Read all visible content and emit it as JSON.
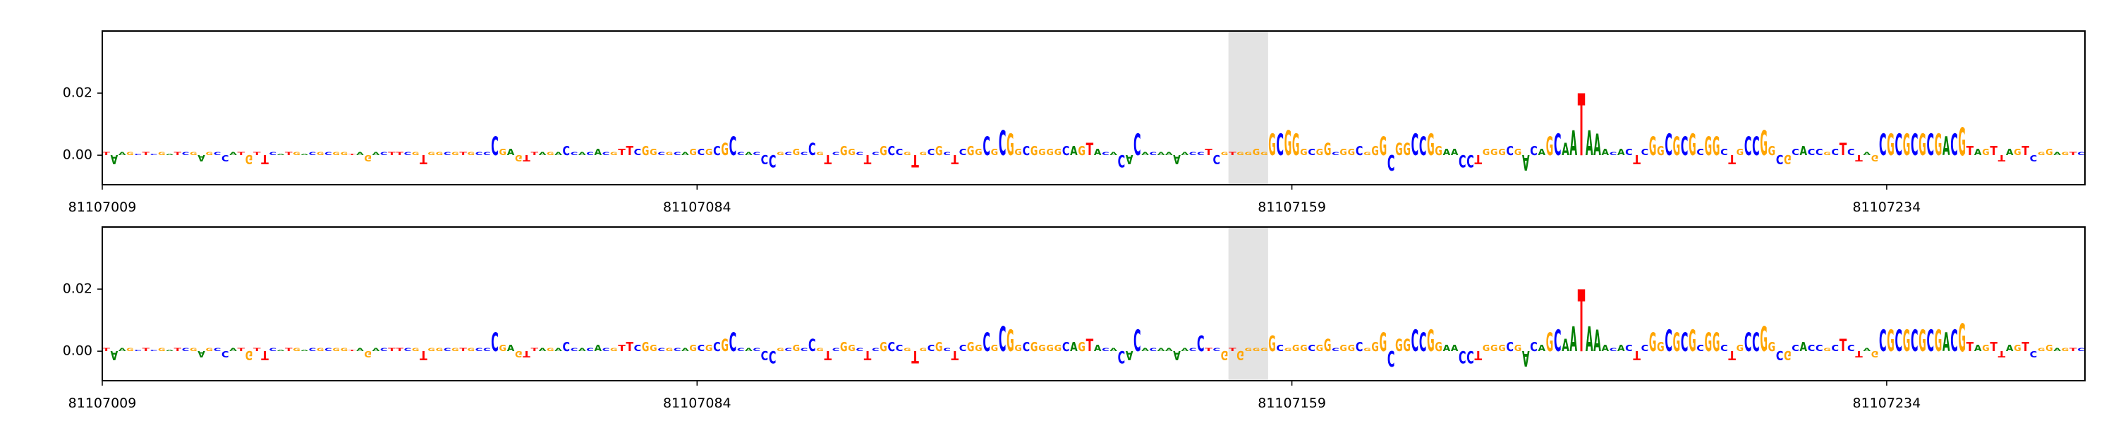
{
  "chart_data": [
    {
      "type": "logo",
      "xlim": [
        81107009,
        81107259
      ],
      "xticks": [
        81107009,
        81107084,
        81107159,
        81107234
      ],
      "ylim": [
        -0.0095,
        0.04
      ],
      "yticks": [
        {
          "value": 0,
          "label": "0.00"
        },
        {
          "value": 0.02,
          "label": "0.02"
        }
      ],
      "highlight": [
        81107151,
        81107156
      ],
      "colors": {
        "A": "#008000",
        "C": "#0000ff",
        "G": "#ffa500",
        "T": "#ff0000"
      },
      "bases": [
        "T",
        "A",
        "A",
        "G",
        "C",
        "T",
        "C",
        "G",
        "A",
        "T",
        "C",
        "G",
        "A",
        "G",
        "C",
        "C",
        "A",
        "T",
        "G",
        "T",
        "T",
        "C",
        "A",
        "T",
        "G",
        "A",
        "C",
        "G",
        "C",
        "G",
        "G",
        "T",
        "A",
        "G",
        "A",
        "C",
        "T",
        "T",
        "C",
        "G",
        "T",
        "G",
        "G",
        "C",
        "G",
        "T",
        "G",
        "C",
        "C",
        "C",
        "G",
        "A",
        "G",
        "T",
        "T",
        "A",
        "G",
        "A",
        "C",
        "C",
        "A",
        "C",
        "A",
        "C",
        "G",
        "T",
        "T",
        "C",
        "G",
        "G",
        "C",
        "G",
        "C",
        "A",
        "G",
        "C",
        "G",
        "C",
        "G",
        "C",
        "C",
        "A",
        "C",
        "C",
        "C",
        "G",
        "C",
        "G",
        "C",
        "C",
        "G",
        "T",
        "C",
        "G",
        "G",
        "C",
        "T",
        "C",
        "G",
        "C",
        "C",
        "G",
        "T",
        "G",
        "C",
        "G",
        "C",
        "T",
        "C",
        "G",
        "G",
        "C",
        "G",
        "C",
        "G",
        "G",
        "C",
        "G",
        "G",
        "G",
        "G",
        "C",
        "A",
        "G",
        "T",
        "A",
        "C",
        "A",
        "C",
        "A",
        "C",
        "A",
        "C",
        "A",
        "A",
        "A",
        "A",
        "C",
        "C",
        "T",
        "C",
        "G",
        "T",
        "G",
        "G",
        "G",
        "G",
        "G",
        "C",
        "G",
        "G",
        "G",
        "C",
        "G",
        "G",
        "C",
        "G",
        "G",
        "C",
        "G",
        "G",
        "G",
        "C",
        "G",
        "G",
        "C",
        "C",
        "G",
        "G",
        "A",
        "A",
        "C",
        "C",
        "T",
        "G",
        "G",
        "G",
        "C",
        "G",
        "A",
        "C",
        "A",
        "G",
        "C",
        "A",
        "A",
        "T",
        "A",
        "A",
        "A",
        "C",
        "A",
        "C",
        "T",
        "C",
        "G",
        "G",
        "C",
        "G",
        "C",
        "G",
        "C",
        "G",
        "G",
        "C",
        "T",
        "G",
        "C",
        "C",
        "G",
        "G",
        "C",
        "G",
        "C",
        "A",
        "C",
        "C",
        "G",
        "C",
        "T",
        "C",
        "T",
        "A",
        "G",
        "C",
        "G",
        "C",
        "G",
        "C",
        "G",
        "C",
        "G",
        "A",
        "C",
        "G",
        "T",
        "A",
        "G",
        "T",
        "T",
        "A",
        "G",
        "T",
        "C",
        "G",
        "G",
        "A",
        "G",
        "T",
        "C"
      ],
      "values": [
        0.001,
        -0.003,
        0.001,
        0.001,
        0.0005,
        0.001,
        0.0005,
        0.001,
        0.0005,
        0.001,
        0.001,
        0.001,
        -0.002,
        0.001,
        0.001,
        -0.002,
        0.001,
        0.001,
        -0.003,
        0.001,
        -0.003,
        0.001,
        0.0005,
        0.001,
        0.001,
        0.0005,
        0.001,
        0.001,
        0.001,
        0.001,
        0.001,
        0.0005,
        0.001,
        -0.002,
        0.001,
        0.001,
        0.001,
        0.001,
        0.001,
        0.001,
        -0.003,
        0.001,
        0.001,
        0.001,
        0.001,
        0.001,
        0.001,
        0.001,
        0.001,
        0.006,
        0.002,
        0.002,
        -0.002,
        -0.002,
        0.001,
        0.001,
        0.001,
        0.001,
        0.003,
        0.001,
        0.001,
        0.001,
        0.002,
        0.001,
        0.001,
        0.002,
        0.003,
        0.002,
        0.003,
        0.002,
        0.001,
        0.001,
        0.001,
        0.001,
        0.002,
        0.002,
        0.002,
        0.003,
        0.004,
        0.006,
        0.001,
        0.001,
        0.001,
        -0.003,
        -0.004,
        0.001,
        0.001,
        0.002,
        0.001,
        0.004,
        0.001,
        -0.003,
        0.001,
        0.003,
        0.002,
        0.001,
        -0.003,
        0.001,
        0.003,
        0.003,
        0.002,
        0.001,
        -0.004,
        0.001,
        0.002,
        0.003,
        0.001,
        -0.003,
        0.002,
        0.003,
        0.002,
        0.006,
        0.002,
        0.008,
        0.007,
        0.002,
        0.003,
        0.003,
        0.002,
        0.002,
        0.002,
        0.003,
        0.003,
        0.003,
        0.004,
        0.002,
        0.001,
        0.001,
        -0.004,
        -0.003,
        0.007,
        0.001,
        0.001,
        0.001,
        0.001,
        -0.003,
        0.001,
        0.001,
        0.001,
        0.002,
        -0.003,
        0.001,
        0.001,
        0.001,
        0.001,
        0.002,
        0.001,
        0.007,
        0.007,
        0.008,
        0.007,
        0.002,
        0.002,
        0.002,
        0.004,
        0.001,
        0.002,
        0.002,
        0.003,
        0.001,
        0.003,
        0.006,
        -0.005,
        0.004,
        0.004,
        0.007,
        0.006,
        0.007,
        0.003,
        0.002,
        0.002,
        -0.004,
        -0.004,
        -0.003,
        0.002,
        0.002,
        0.002,
        0.003,
        0.002,
        -0.005,
        0.003,
        0.002,
        0.006,
        0.007,
        0.004,
        0.008,
        0.02,
        0.008,
        0.007,
        0.002,
        0.001,
        0.002,
        0.002,
        -0.003,
        0.002,
        0.006,
        0.003,
        0.007,
        0.006,
        0.006,
        0.007,
        0.002,
        0.006,
        0.006,
        0.002,
        -0.003,
        0.002,
        0.006,
        0.006,
        0.008,
        0.003,
        -0.003,
        -0.003,
        0.002,
        0.003,
        0.002,
        0.002,
        0.001,
        0.002,
        0.004,
        0.002,
        -0.002,
        0.001,
        -0.002,
        0.007,
        0.007,
        0.007,
        0.007,
        0.007,
        0.007,
        0.007,
        0.007,
        0.006,
        0.007,
        0.009,
        0.003,
        0.002,
        0.002,
        0.003,
        -0.002,
        0.002,
        0.002,
        0.003,
        -0.002,
        0.001,
        0.002,
        0.001,
        0.001,
        0.001,
        0.001
      ]
    },
    {
      "type": "logo",
      "xlim": [
        81107009,
        81107259
      ],
      "xticks": [
        81107009,
        81107084,
        81107159,
        81107234
      ],
      "ylim": [
        -0.0095,
        0.04
      ],
      "yticks": [
        {
          "value": 0,
          "label": "0.00"
        },
        {
          "value": 0.02,
          "label": "0.02"
        }
      ],
      "highlight": [
        81107151,
        81107156
      ],
      "colors": {
        "A": "#008000",
        "C": "#0000ff",
        "G": "#ffa500",
        "T": "#ff0000"
      },
      "bases": [
        "T",
        "A",
        "A",
        "G",
        "C",
        "T",
        "C",
        "G",
        "A",
        "T",
        "C",
        "G",
        "A",
        "G",
        "C",
        "C",
        "A",
        "T",
        "G",
        "T",
        "T",
        "C",
        "A",
        "T",
        "G",
        "A",
        "C",
        "G",
        "C",
        "G",
        "G",
        "T",
        "A",
        "G",
        "A",
        "C",
        "T",
        "T",
        "C",
        "G",
        "T",
        "G",
        "G",
        "C",
        "G",
        "T",
        "G",
        "C",
        "C",
        "C",
        "G",
        "A",
        "G",
        "T",
        "T",
        "A",
        "G",
        "A",
        "C",
        "C",
        "A",
        "C",
        "A",
        "C",
        "G",
        "T",
        "T",
        "C",
        "G",
        "G",
        "C",
        "G",
        "C",
        "A",
        "G",
        "C",
        "G",
        "C",
        "G",
        "C",
        "C",
        "A",
        "C",
        "C",
        "C",
        "G",
        "C",
        "G",
        "C",
        "C",
        "G",
        "T",
        "C",
        "G",
        "G",
        "C",
        "T",
        "C",
        "G",
        "C",
        "C",
        "G",
        "T",
        "G",
        "C",
        "G",
        "C",
        "T",
        "C",
        "G",
        "G",
        "C",
        "G",
        "C",
        "G",
        "G",
        "C",
        "G",
        "G",
        "G",
        "G",
        "C",
        "A",
        "G",
        "T",
        "A",
        "C",
        "A",
        "C",
        "A",
        "C",
        "A",
        "C",
        "A",
        "A",
        "A",
        "A",
        "C",
        "C",
        "T",
        "C",
        "G",
        "T",
        "G",
        "G",
        "G",
        "G",
        "G",
        "C",
        "G",
        "G",
        "G",
        "C",
        "G",
        "G",
        "C",
        "G",
        "G",
        "C",
        "G",
        "G",
        "G",
        "C",
        "G",
        "G",
        "C",
        "C",
        "G",
        "G",
        "A",
        "A",
        "C",
        "C",
        "T",
        "G",
        "G",
        "G",
        "C",
        "G",
        "A",
        "C",
        "A",
        "G",
        "C",
        "A",
        "A",
        "T",
        "A",
        "A",
        "A",
        "C",
        "A",
        "C",
        "T",
        "C",
        "G",
        "G",
        "C",
        "G",
        "C",
        "G",
        "C",
        "G",
        "G",
        "C",
        "T",
        "G",
        "C",
        "C",
        "G",
        "G",
        "C",
        "G",
        "C",
        "A",
        "C",
        "C",
        "G",
        "C",
        "T",
        "C",
        "T",
        "A",
        "G",
        "C",
        "G",
        "C",
        "G",
        "C",
        "G",
        "C",
        "G",
        "A",
        "C",
        "G",
        "T",
        "A",
        "G",
        "T",
        "T",
        "A",
        "G",
        "T",
        "C",
        "G",
        "G",
        "A",
        "G",
        "T",
        "C"
      ],
      "values": [
        0.001,
        -0.003,
        0.001,
        0.001,
        0.0005,
        0.001,
        0.0005,
        0.001,
        0.0005,
        0.001,
        0.001,
        0.001,
        -0.002,
        0.001,
        0.001,
        -0.002,
        0.001,
        0.001,
        -0.003,
        0.001,
        -0.003,
        0.001,
        0.0005,
        0.001,
        0.001,
        0.0005,
        0.001,
        0.001,
        0.001,
        0.001,
        0.001,
        0.0005,
        0.001,
        -0.002,
        0.001,
        0.001,
        0.001,
        0.001,
        0.001,
        0.001,
        -0.003,
        0.001,
        0.001,
        0.001,
        0.001,
        0.001,
        0.001,
        0.001,
        0.001,
        0.006,
        0.002,
        0.002,
        -0.002,
        -0.002,
        0.001,
        0.001,
        0.001,
        0.001,
        0.003,
        0.001,
        0.001,
        0.001,
        0.002,
        0.001,
        0.001,
        0.002,
        0.003,
        0.002,
        0.003,
        0.002,
        0.001,
        0.001,
        0.001,
        0.001,
        0.002,
        0.002,
        0.002,
        0.003,
        0.004,
        0.006,
        0.001,
        0.001,
        0.001,
        -0.003,
        -0.004,
        0.001,
        0.001,
        0.002,
        0.001,
        0.004,
        0.001,
        -0.003,
        0.001,
        0.003,
        0.002,
        0.001,
        -0.003,
        0.001,
        0.003,
        0.003,
        0.002,
        0.001,
        -0.004,
        0.001,
        0.002,
        0.003,
        0.001,
        -0.003,
        0.002,
        0.003,
        0.002,
        0.006,
        0.002,
        0.008,
        0.007,
        0.002,
        0.003,
        0.003,
        0.002,
        0.002,
        0.002,
        0.003,
        0.003,
        0.003,
        0.004,
        0.002,
        0.001,
        0.001,
        -0.004,
        -0.003,
        0.007,
        0.001,
        0.001,
        0.001,
        0.001,
        -0.003,
        0.001,
        0.001,
        0.005,
        0.001,
        0.001,
        -0.003,
        0.001,
        -0.003,
        0.001,
        0.001,
        0.001,
        0.005,
        0.002,
        0.001,
        0.002,
        0.002,
        0.002,
        0.002,
        0.004,
        0.001,
        0.002,
        0.002,
        0.003,
        0.001,
        0.003,
        0.006,
        -0.005,
        0.004,
        0.004,
        0.007,
        0.006,
        0.007,
        0.003,
        0.002,
        0.002,
        -0.004,
        -0.004,
        -0.003,
        0.002,
        0.002,
        0.002,
        0.003,
        0.002,
        -0.005,
        0.003,
        0.002,
        0.006,
        0.007,
        0.004,
        0.008,
        0.02,
        0.008,
        0.007,
        0.002,
        0.001,
        0.002,
        0.002,
        -0.003,
        0.002,
        0.006,
        0.003,
        0.007,
        0.006,
        0.006,
        0.007,
        0.002,
        0.006,
        0.006,
        0.002,
        -0.003,
        0.002,
        0.006,
        0.006,
        0.008,
        0.003,
        -0.003,
        -0.003,
        0.002,
        0.003,
        0.002,
        0.002,
        0.001,
        0.002,
        0.004,
        0.002,
        -0.002,
        0.001,
        -0.002,
        0.007,
        0.007,
        0.007,
        0.007,
        0.007,
        0.007,
        0.007,
        0.007,
        0.006,
        0.007,
        0.009,
        0.003,
        0.002,
        0.002,
        0.003,
        -0.002,
        0.002,
        0.002,
        0.003,
        -0.002,
        0.001,
        0.002,
        0.001,
        0.001,
        0.001,
        0.001
      ]
    }
  ]
}
